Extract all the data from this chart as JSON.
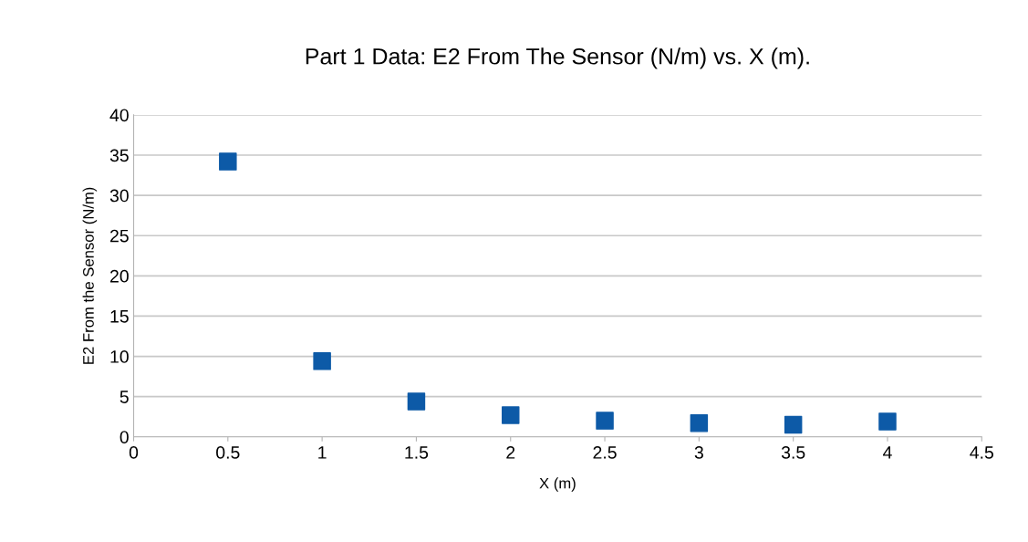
{
  "chart_data": {
    "type": "scatter",
    "title": "Part 1 Data: E2 From The Sensor (N/m) vs. X (m).",
    "xlabel": "X (m)",
    "ylabel": "E2 From the Sensor (N/m)",
    "x": [
      0.5,
      1,
      1.5,
      2,
      2.5,
      3,
      3.5,
      4
    ],
    "series": [
      {
        "color": "#0d5aa7",
        "values": [
          34.2,
          9.4,
          4.4,
          2.7,
          2.0,
          1.7,
          1.5,
          1.9
        ]
      }
    ],
    "xlim": [
      0,
      4.5
    ],
    "xticks": [
      0,
      0.5,
      1,
      1.5,
      2,
      2.5,
      3,
      3.5,
      4,
      4.5
    ],
    "ylim": [
      0,
      40
    ],
    "yticks": [
      0,
      5,
      10,
      15,
      20,
      25,
      30,
      35,
      40
    ],
    "grid": "y",
    "marker": "square",
    "legend": false
  }
}
